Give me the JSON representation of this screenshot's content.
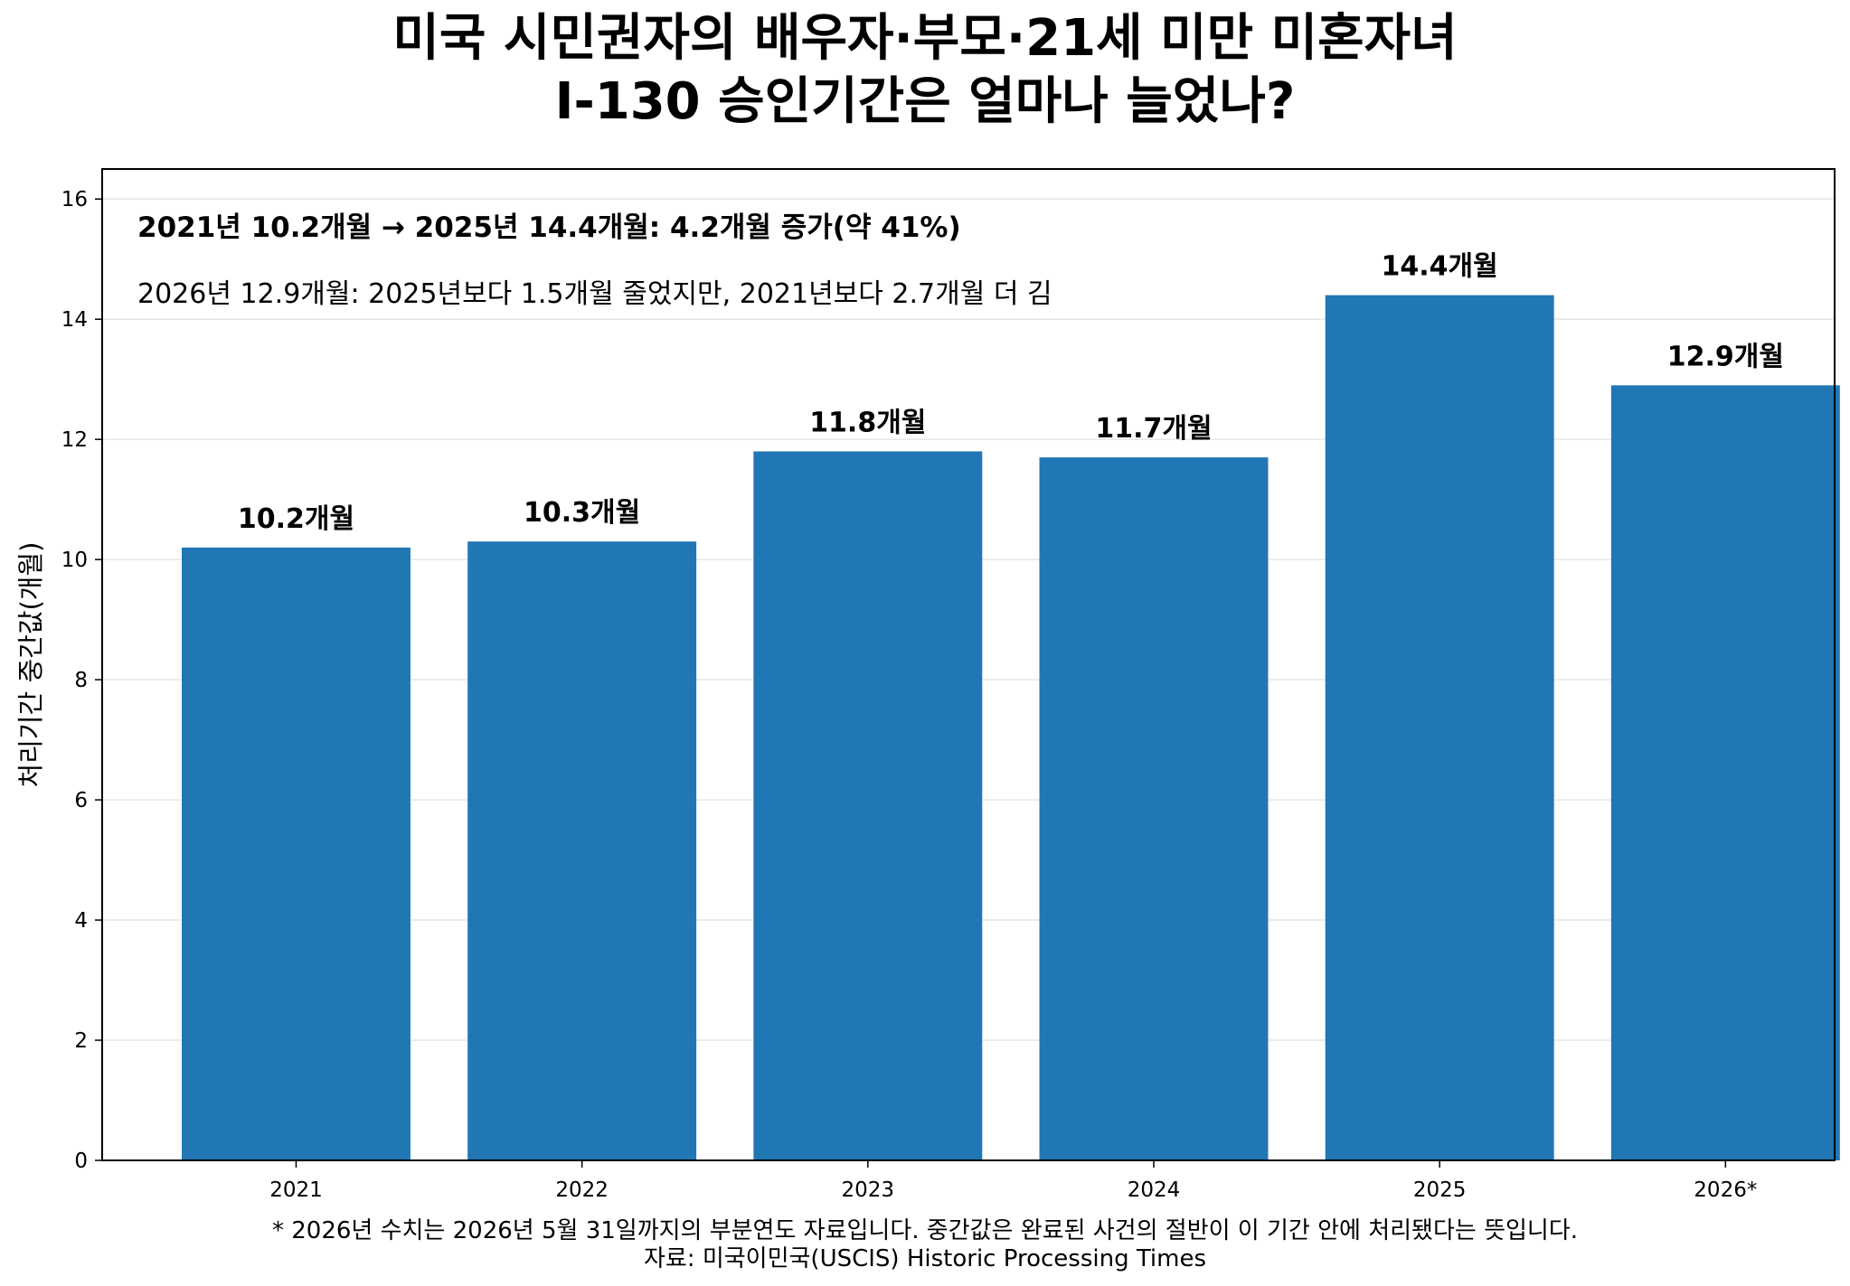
{
  "title_lines": [
    "미국 시민권자의 배우자·부모·21세 미만 미혼자녀",
    "I-130 승인기간은 얼마나 늘었나?"
  ],
  "footnotes": [
    "* 2026년 수치는 2026년 5월 31일까지의 부분연도 자료입니다. 중간값은 완료된 사건의 절반이 이 기간 안에 처리됐다는 뜻입니다.",
    "자료: 미국이민국(USCIS) Historic Processing Times"
  ],
  "chart_data": {
    "type": "bar",
    "categories": [
      "2021",
      "2022",
      "2023",
      "2024",
      "2025",
      "2026*"
    ],
    "values": [
      10.2,
      10.3,
      11.8,
      11.7,
      14.4,
      12.9
    ],
    "value_labels": [
      "10.2개월",
      "10.3개월",
      "11.8개월",
      "11.7개월",
      "14.4개월",
      "12.9개월"
    ],
    "ylabel": "처리기간 중간값(개월)",
    "xlabel": "",
    "ylim": [
      0,
      16.5
    ],
    "yticks": [
      0,
      2,
      4,
      6,
      8,
      10,
      12,
      14,
      16
    ],
    "grid": true,
    "bar_color": "#2077b4",
    "annotations": [
      "2021년 10.2개월 → 2025년 14.4개월: 4.2개월 증가(약 41%)",
      "2026년 12.9개월: 2025년보다 1.5개월 줄었지만, 2021년보다 2.7개월 더 김"
    ]
  }
}
